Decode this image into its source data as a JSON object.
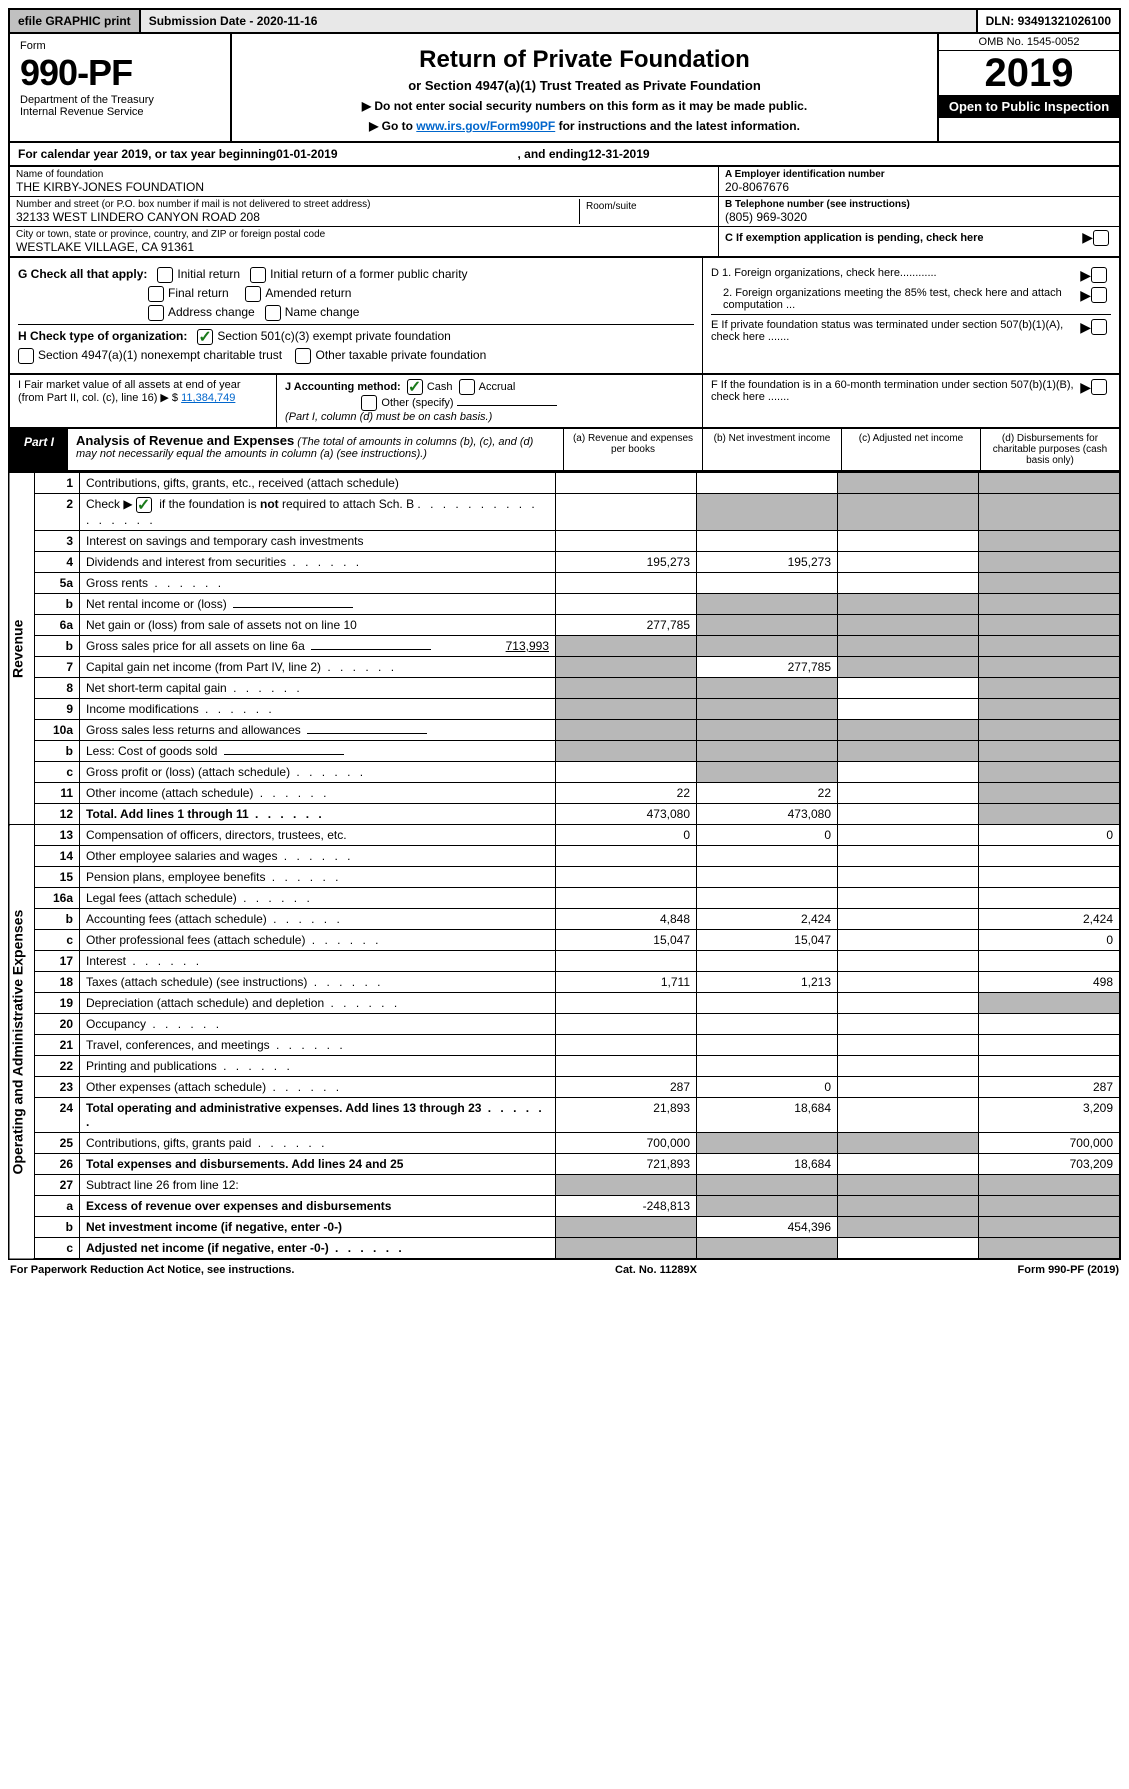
{
  "topbar": {
    "efile": "efile GRAPHIC print",
    "subdate_label": "Submission Date - ",
    "subdate": "2020-11-16",
    "dln_label": "DLN: ",
    "dln": "93491321026100"
  },
  "header": {
    "form": "Form",
    "num": "990-PF",
    "dept": "Department of the Treasury",
    "irs": "Internal Revenue Service",
    "title": "Return of Private Foundation",
    "subtitle": "or Section 4947(a)(1) Trust Treated as Private Foundation",
    "instr1": "▶ Do not enter social security numbers on this form as it may be made public.",
    "instr2_pre": "▶ Go to ",
    "instr2_link": "www.irs.gov/Form990PF",
    "instr2_post": " for instructions and the latest information.",
    "omb": "OMB No. 1545-0052",
    "year": "2019",
    "open": "Open to Public Inspection"
  },
  "calyear": {
    "pre": "For calendar year 2019, or tax year beginning ",
    "begin": "01-01-2019",
    "mid": ", and ending ",
    "end": "12-31-2019"
  },
  "info": {
    "name_lbl": "Name of foundation",
    "name": "THE KIRBY-JONES FOUNDATION",
    "addr_lbl": "Number and street (or P.O. box number if mail is not delivered to street address)",
    "addr": "32133 WEST LINDERO CANYON ROAD 208",
    "room_lbl": "Room/suite",
    "city_lbl": "City or town, state or province, country, and ZIP or foreign postal code",
    "city": "WESTLAKE VILLAGE, CA  91361",
    "ein_lbl": "A Employer identification number",
    "ein": "20-8067676",
    "tel_lbl": "B Telephone number (see instructions)",
    "tel": "(805) 969-3020",
    "c_lbl": "C If exemption application is pending, check here"
  },
  "checks": {
    "g_lbl": "G Check all that apply:",
    "g_initial": "Initial return",
    "g_initial_pub": "Initial return of a former public charity",
    "g_final": "Final return",
    "g_amended": "Amended return",
    "g_addr": "Address change",
    "g_name": "Name change",
    "h_lbl": "H Check type of organization:",
    "h_501c3": "Section 501(c)(3) exempt private foundation",
    "h_4947": "Section 4947(a)(1) nonexempt charitable trust",
    "h_other": "Other taxable private foundation",
    "d1": "D 1. Foreign organizations, check here............",
    "d2": "2. Foreign organizations meeting the 85% test, check here and attach computation ...",
    "e": "E  If private foundation status was terminated under section 507(b)(1)(A), check here ......."
  },
  "fmv": {
    "i_lbl": "I Fair market value of all assets at end of year (from Part II, col. (c), line 16) ▶ $",
    "i_val": "11,384,749",
    "j_lbl": "J Accounting method:",
    "j_cash": "Cash",
    "j_accrual": "Accrual",
    "j_other": "Other (specify)",
    "j_note": "(Part I, column (d) must be on cash basis.)",
    "f_lbl": "F  If the foundation is in a 60-month termination under section 507(b)(1)(B), check here ......."
  },
  "part1": {
    "label": "Part I",
    "title": "Analysis of Revenue and Expenses",
    "desc": "(The total of amounts in columns (b), (c), and (d) may not necessarily equal the amounts in column (a) (see instructions).)",
    "col_a": "(a) Revenue and expenses per books",
    "col_b": "(b) Net investment income",
    "col_c": "(c) Adjusted net income",
    "col_d": "(d) Disbursements for charitable purposes (cash basis only)"
  },
  "sidelabels": {
    "revenue": "Revenue",
    "expenses": "Operating and Administrative Expenses"
  },
  "rows": [
    {
      "n": "1",
      "d": "Contributions, gifts, grants, etc., received (attach schedule)",
      "a": "",
      "b": "",
      "c": "s",
      "d_": "s"
    },
    {
      "n": "2",
      "d": "Check ▶ ✓ if the foundation is not required to attach Sch. B",
      "dots": true,
      "a": "",
      "b": "s",
      "c": "s",
      "d_": "s"
    },
    {
      "n": "3",
      "d": "Interest on savings and temporary cash investments",
      "a": "",
      "b": "",
      "c": "",
      "d_": "s"
    },
    {
      "n": "4",
      "d": "Dividends and interest from securities",
      "dots": true,
      "a": "195,273",
      "b": "195,273",
      "c": "",
      "d_": "s"
    },
    {
      "n": "5a",
      "d": "Gross rents",
      "dots": true,
      "a": "",
      "b": "",
      "c": "",
      "d_": "s"
    },
    {
      "n": "b",
      "d": "Net rental income or (loss)",
      "a": "",
      "b": "s",
      "c": "s",
      "d_": "s",
      "blank": true
    },
    {
      "n": "6a",
      "d": "Net gain or (loss) from sale of assets not on line 10",
      "a": "277,785",
      "b": "s",
      "c": "s",
      "d_": "s"
    },
    {
      "n": "b",
      "d": "Gross sales price for all assets on line 6a",
      "val": "713,993",
      "a": "s",
      "b": "s",
      "c": "s",
      "d_": "s",
      "blank": true
    },
    {
      "n": "7",
      "d": "Capital gain net income (from Part IV, line 2)",
      "dots": true,
      "a": "s",
      "b": "277,785",
      "c": "s",
      "d_": "s"
    },
    {
      "n": "8",
      "d": "Net short-term capital gain",
      "dots": true,
      "a": "s",
      "b": "s",
      "c": "",
      "d_": "s"
    },
    {
      "n": "9",
      "d": "Income modifications",
      "dots": true,
      "a": "s",
      "b": "s",
      "c": "",
      "d_": "s"
    },
    {
      "n": "10a",
      "d": "Gross sales less returns and allowances",
      "a": "s",
      "b": "s",
      "c": "s",
      "d_": "s",
      "blank": true
    },
    {
      "n": "b",
      "d": "Less: Cost of goods sold",
      "dots": true,
      "a": "s",
      "b": "s",
      "c": "s",
      "d_": "s",
      "blank": true
    },
    {
      "n": "c",
      "d": "Gross profit or (loss) (attach schedule)",
      "dots": true,
      "a": "",
      "b": "s",
      "c": "",
      "d_": "s"
    },
    {
      "n": "11",
      "d": "Other income (attach schedule)",
      "dots": true,
      "a": "22",
      "b": "22",
      "c": "",
      "d_": "s"
    },
    {
      "n": "12",
      "d": "Total. Add lines 1 through 11",
      "dots": true,
      "bold": true,
      "a": "473,080",
      "b": "473,080",
      "c": "",
      "d_": "s"
    },
    {
      "n": "13",
      "d": "Compensation of officers, directors, trustees, etc.",
      "a": "0",
      "b": "0",
      "c": "",
      "d_": "0"
    },
    {
      "n": "14",
      "d": "Other employee salaries and wages",
      "dots": true,
      "a": "",
      "b": "",
      "c": "",
      "d_": ""
    },
    {
      "n": "15",
      "d": "Pension plans, employee benefits",
      "dots": true,
      "a": "",
      "b": "",
      "c": "",
      "d_": ""
    },
    {
      "n": "16a",
      "d": "Legal fees (attach schedule)",
      "dots": true,
      "a": "",
      "b": "",
      "c": "",
      "d_": ""
    },
    {
      "n": "b",
      "d": "Accounting fees (attach schedule)",
      "dots": true,
      "a": "4,848",
      "b": "2,424",
      "c": "",
      "d_": "2,424"
    },
    {
      "n": "c",
      "d": "Other professional fees (attach schedule)",
      "dots": true,
      "a": "15,047",
      "b": "15,047",
      "c": "",
      "d_": "0"
    },
    {
      "n": "17",
      "d": "Interest",
      "dots": true,
      "a": "",
      "b": "",
      "c": "",
      "d_": ""
    },
    {
      "n": "18",
      "d": "Taxes (attach schedule) (see instructions)",
      "dots": true,
      "a": "1,711",
      "b": "1,213",
      "c": "",
      "d_": "498"
    },
    {
      "n": "19",
      "d": "Depreciation (attach schedule) and depletion",
      "dots": true,
      "a": "",
      "b": "",
      "c": "",
      "d_": "s"
    },
    {
      "n": "20",
      "d": "Occupancy",
      "dots": true,
      "a": "",
      "b": "",
      "c": "",
      "d_": ""
    },
    {
      "n": "21",
      "d": "Travel, conferences, and meetings",
      "dots": true,
      "a": "",
      "b": "",
      "c": "",
      "d_": ""
    },
    {
      "n": "22",
      "d": "Printing and publications",
      "dots": true,
      "a": "",
      "b": "",
      "c": "",
      "d_": ""
    },
    {
      "n": "23",
      "d": "Other expenses (attach schedule)",
      "dots": true,
      "a": "287",
      "b": "0",
      "c": "",
      "d_": "287"
    },
    {
      "n": "24",
      "d": "Total operating and administrative expenses. Add lines 13 through 23",
      "dots": true,
      "bold": true,
      "a": "21,893",
      "b": "18,684",
      "c": "",
      "d_": "3,209"
    },
    {
      "n": "25",
      "d": "Contributions, gifts, grants paid",
      "dots": true,
      "a": "700,000",
      "b": "s",
      "c": "s",
      "d_": "700,000"
    },
    {
      "n": "26",
      "d": "Total expenses and disbursements. Add lines 24 and 25",
      "bold": true,
      "a": "721,893",
      "b": "18,684",
      "c": "",
      "d_": "703,209"
    },
    {
      "n": "27",
      "d": "Subtract line 26 from line 12:",
      "a": "s",
      "b": "s",
      "c": "s",
      "d_": "s"
    },
    {
      "n": "a",
      "d": "Excess of revenue over expenses and disbursements",
      "bold": true,
      "a": "-248,813",
      "b": "s",
      "c": "s",
      "d_": "s"
    },
    {
      "n": "b",
      "d": "Net investment income (if negative, enter -0-)",
      "bold": true,
      "a": "s",
      "b": "454,396",
      "c": "s",
      "d_": "s"
    },
    {
      "n": "c",
      "d": "Adjusted net income (if negative, enter -0-)",
      "dots": true,
      "bold": true,
      "a": "s",
      "b": "s",
      "c": "",
      "d_": "s"
    }
  ],
  "footer": {
    "left": "For Paperwork Reduction Act Notice, see instructions.",
    "mid": "Cat. No. 11289X",
    "right": "Form 990-PF (2019)"
  }
}
